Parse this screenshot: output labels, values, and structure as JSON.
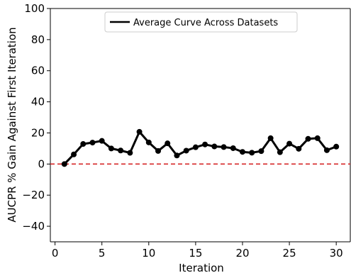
{
  "chart_data": {
    "type": "line",
    "xlabel": "Iteration",
    "ylabel": "AUCPR % Gain Against First Iteration",
    "xlim": [
      -0.5,
      31.5
    ],
    "ylim": [
      -50,
      100
    ],
    "xticks": [
      0,
      5,
      10,
      15,
      20,
      25,
      30
    ],
    "yticks": [
      -40,
      -20,
      0,
      20,
      40,
      60,
      80,
      100
    ],
    "ytick_labels": [
      "−40",
      "−20",
      "0",
      "20",
      "40",
      "60",
      "80",
      "100"
    ],
    "legend_position": "top-center",
    "grid": false,
    "reference_line": {
      "y": 0,
      "color": "#d62728",
      "style": "dashed"
    },
    "series": [
      {
        "name": "Average Curve Across Datasets",
        "color": "#000000",
        "x": [
          1,
          2,
          3,
          4,
          5,
          6,
          7,
          8,
          9,
          10,
          11,
          12,
          13,
          14,
          15,
          16,
          17,
          18,
          19,
          20,
          21,
          22,
          23,
          24,
          25,
          26,
          27,
          28,
          29,
          30
        ],
        "y": [
          0,
          6.2,
          12.9,
          13.8,
          14.9,
          10,
          8.7,
          7.2,
          20.7,
          13.9,
          8.4,
          13.3,
          5.5,
          8.6,
          10.8,
          12.6,
          11.3,
          10.9,
          10.2,
          7.8,
          7.3,
          8.3,
          16.6,
          7.6,
          13.1,
          9.8,
          16.2,
          16.6,
          8.9,
          11.2
        ]
      }
    ]
  }
}
